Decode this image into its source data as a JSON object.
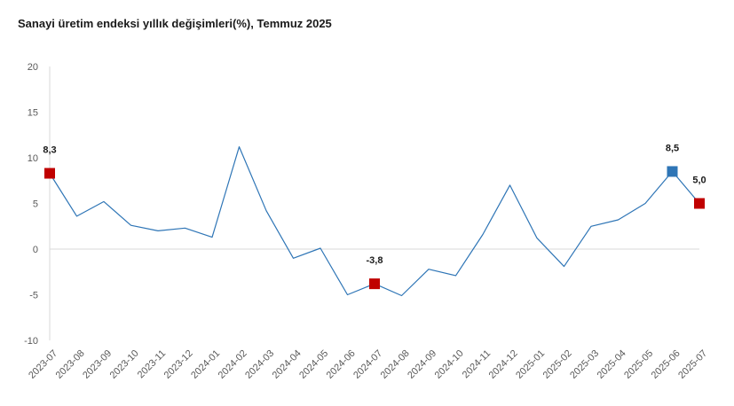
{
  "chart_data": {
    "type": "line",
    "title": "Sanayi üretim endeksi yıllık değişimleri(%), Temmuz 2025",
    "xlabel": "",
    "ylabel": "",
    "ylim": [
      -10,
      20
    ],
    "yticks": [
      "20",
      "15",
      "10",
      "5",
      "0",
      "-5",
      "-10"
    ],
    "grid": false,
    "legend": "none",
    "colors": {
      "line": "#2e75b6",
      "marker_red": "#c00000",
      "marker_blue": "#2e75b6",
      "zero_line": "#d9d9d9",
      "axis": "#d9d9d9"
    },
    "categories": [
      "2023-07",
      "2023-08",
      "2023-09",
      "2023-10",
      "2023-11",
      "2023-12",
      "2024-01",
      "2024-02",
      "2024-03",
      "2024-04",
      "2024-05",
      "2024-06",
      "2024-07",
      "2024-08",
      "2024-09",
      "2024-10",
      "2024-11",
      "2024-12",
      "2025-01",
      "2025-02",
      "2025-03",
      "2025-04",
      "2025-05",
      "2025-06",
      "2025-07"
    ],
    "series": [
      {
        "values": [
          8.3,
          3.6,
          5.2,
          2.6,
          2.0,
          2.3,
          1.3,
          11.2,
          4.2,
          -1.0,
          0.1,
          -5.0,
          -3.8,
          -5.1,
          -2.2,
          -2.9,
          1.6,
          7.0,
          1.2,
          -1.9,
          2.5,
          3.2,
          5.0,
          8.5,
          5.0
        ]
      }
    ],
    "highlighted_points": [
      {
        "category": "2023-07",
        "label": "8,3",
        "color": "#c00000"
      },
      {
        "category": "2024-07",
        "label": "-3,8",
        "color": "#c00000"
      },
      {
        "category": "2025-06",
        "label": "8,5",
        "color": "#2e75b6"
      },
      {
        "category": "2025-07",
        "label": "5,0",
        "color": "#c00000"
      }
    ]
  }
}
